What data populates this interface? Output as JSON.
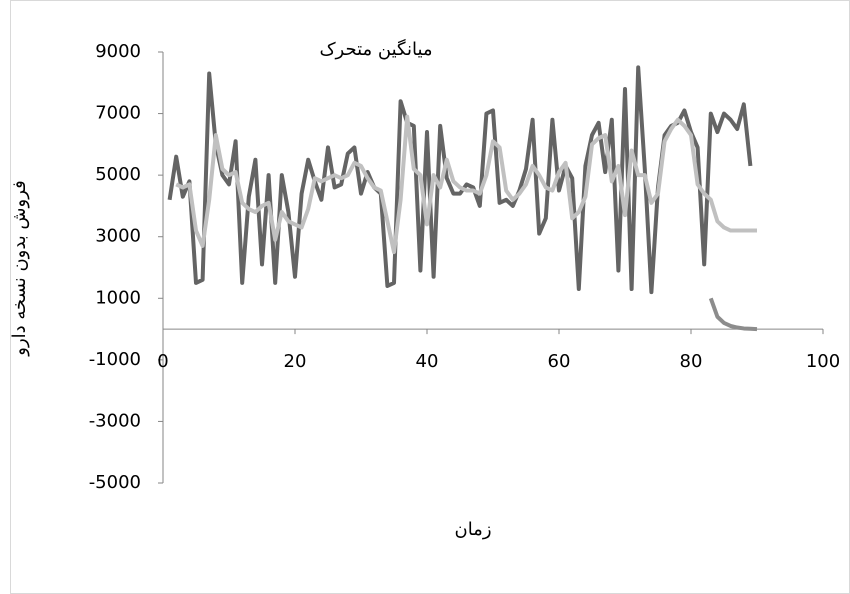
{
  "chart_data": {
    "type": "line",
    "title": "میانگین متحرک",
    "x_label": "زمان",
    "y_label": "فروش بدون نسخه دارو",
    "xlim": [
      0,
      100
    ],
    "xticks": [
      0,
      20,
      40,
      60,
      80,
      100
    ],
    "ylim": [
      -5000,
      9000
    ],
    "yticks": [
      -5000,
      -3000,
      -1000,
      1000,
      3000,
      5000,
      7000,
      9000
    ],
    "series": [
      {
        "color": "#646464",
        "x": [
          1,
          2,
          3,
          4,
          5,
          6,
          7,
          8,
          9,
          10,
          11,
          12,
          13,
          14,
          15,
          16,
          17,
          18,
          19,
          20,
          21,
          22,
          23,
          24,
          25,
          26,
          27,
          28,
          29,
          30,
          31,
          32,
          33,
          34,
          35,
          36,
          37,
          38,
          39,
          40,
          41,
          42,
          43,
          44,
          45,
          46,
          47,
          48,
          49,
          50,
          51,
          52,
          53,
          54,
          55,
          56,
          57,
          58,
          59,
          60,
          61,
          62,
          63,
          64,
          65,
          66,
          67,
          68,
          69,
          70,
          71,
          72,
          73,
          74,
          75,
          76,
          77,
          78,
          79,
          80,
          81,
          82,
          83,
          84,
          85,
          86,
          87,
          88,
          89
        ],
        "values": [
          4200,
          5600,
          4300,
          4800,
          1500,
          1600,
          8300,
          6000,
          5000,
          4700,
          6100,
          1500,
          4300,
          5500,
          2100,
          5000,
          1500,
          5000,
          3800,
          1700,
          4400,
          5500,
          4800,
          4200,
          5900,
          4600,
          4700,
          5700,
          5900,
          4400,
          5100,
          4600,
          4400,
          1400,
          1500,
          7400,
          6700,
          6600,
          1900,
          6400,
          1700,
          6600,
          4900,
          4400,
          4400,
          4700,
          4600,
          4000,
          7000,
          7100,
          4100,
          4200,
          4000,
          4500,
          5200,
          6800,
          3100,
          3600,
          6800,
          4500,
          5300,
          4900,
          1300,
          5300,
          6300,
          6700,
          5100,
          6800,
          1900,
          7800,
          1300,
          8500,
          5200,
          1200,
          4600,
          6300,
          6600,
          6700,
          7100,
          6400,
          5900,
          2100,
          7000,
          6400,
          7000,
          6800,
          6500,
          7300,
          5300
        ]
      },
      {
        "color": "#c0c0c0",
        "x": [
          2,
          3,
          4,
          5,
          6,
          7,
          8,
          9,
          10,
          11,
          12,
          13,
          14,
          15,
          16,
          17,
          18,
          19,
          20,
          21,
          22,
          23,
          24,
          25,
          26,
          27,
          28,
          29,
          30,
          31,
          32,
          33,
          34,
          35,
          36,
          37,
          38,
          39,
          40,
          41,
          42,
          43,
          44,
          45,
          46,
          47,
          48,
          49,
          50,
          51,
          52,
          53,
          54,
          55,
          56,
          57,
          58,
          59,
          60,
          61,
          62,
          63,
          64,
          65,
          66,
          67,
          68,
          69,
          70,
          71,
          72,
          73,
          74,
          75,
          76,
          77,
          78,
          79,
          80,
          81,
          82,
          83,
          84,
          85,
          86,
          87,
          88,
          89,
          90
        ],
        "values": [
          4700,
          4600,
          4700,
          3200,
          2700,
          4200,
          6300,
          5200,
          5000,
          5100,
          4100,
          3900,
          3800,
          4000,
          4100,
          2900,
          3800,
          3500,
          3400,
          3300,
          3900,
          4900,
          4800,
          4900,
          5000,
          4900,
          5000,
          5400,
          5300,
          4900,
          4600,
          4500,
          3500,
          2500,
          4200,
          6900,
          5200,
          5000,
          3400,
          5000,
          4600,
          5500,
          4800,
          4600,
          4500,
          4500,
          4400,
          5000,
          6100,
          5900,
          4500,
          4200,
          4400,
          4700,
          5300,
          5000,
          4600,
          4500,
          5100,
          5400,
          3600,
          3800,
          4300,
          6000,
          6200,
          6300,
          4800,
          5300,
          3700,
          5800,
          5000,
          5000,
          4100,
          4400,
          6100,
          6500,
          6800,
          6600,
          6300,
          4700,
          4400,
          4200,
          3500,
          3300,
          3200,
          3200,
          3200,
          3200,
          3200
        ]
      },
      {
        "color": "#8c8c8c",
        "x": [
          83,
          84,
          85,
          86,
          87,
          88,
          89,
          90
        ],
        "values": [
          1000,
          400,
          200,
          100,
          50,
          20,
          10,
          0
        ]
      }
    ]
  }
}
